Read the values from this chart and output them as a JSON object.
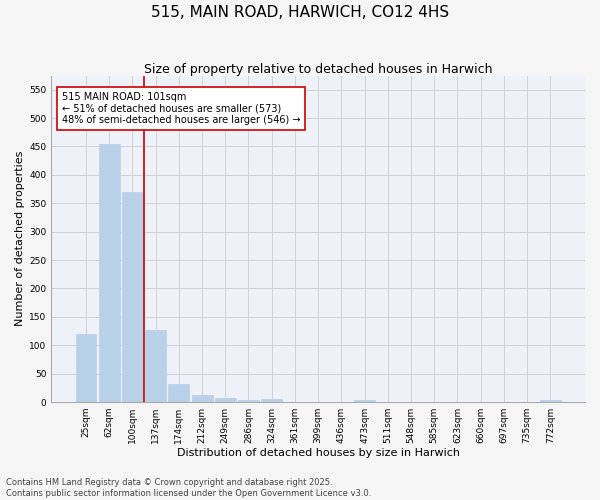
{
  "title": "515, MAIN ROAD, HARWICH, CO12 4HS",
  "subtitle": "Size of property relative to detached houses in Harwich",
  "xlabel": "Distribution of detached houses by size in Harwich",
  "ylabel": "Number of detached properties",
  "categories": [
    "25sqm",
    "62sqm",
    "100sqm",
    "137sqm",
    "174sqm",
    "212sqm",
    "249sqm",
    "286sqm",
    "324sqm",
    "361sqm",
    "399sqm",
    "436sqm",
    "473sqm",
    "511sqm",
    "548sqm",
    "585sqm",
    "623sqm",
    "660sqm",
    "697sqm",
    "735sqm",
    "772sqm"
  ],
  "values": [
    120,
    455,
    370,
    127,
    32,
    12,
    8,
    4,
    6,
    0,
    1,
    0,
    4,
    0,
    0,
    0,
    0,
    0,
    0,
    0,
    3
  ],
  "bar_color": "#b8d0e8",
  "bar_edgecolor": "#b8d0e8",
  "grid_color": "#cccccc",
  "background_color": "#eef2f8",
  "vline_x_index": 2,
  "vline_color": "#cc0000",
  "annotation_text": "515 MAIN ROAD: 101sqm\n← 51% of detached houses are smaller (573)\n48% of semi-detached houses are larger (546) →",
  "annotation_box_color": "#ffffff",
  "annotation_box_edgecolor": "#cc0000",
  "ylim": [
    0,
    575
  ],
  "yticks": [
    0,
    50,
    100,
    150,
    200,
    250,
    300,
    350,
    400,
    450,
    500,
    550
  ],
  "footer_text": "Contains HM Land Registry data © Crown copyright and database right 2025.\nContains public sector information licensed under the Open Government Licence v3.0.",
  "title_fontsize": 11,
  "subtitle_fontsize": 9,
  "xlabel_fontsize": 8,
  "ylabel_fontsize": 8,
  "tick_fontsize": 6.5,
  "annotation_fontsize": 7,
  "footer_fontsize": 6
}
